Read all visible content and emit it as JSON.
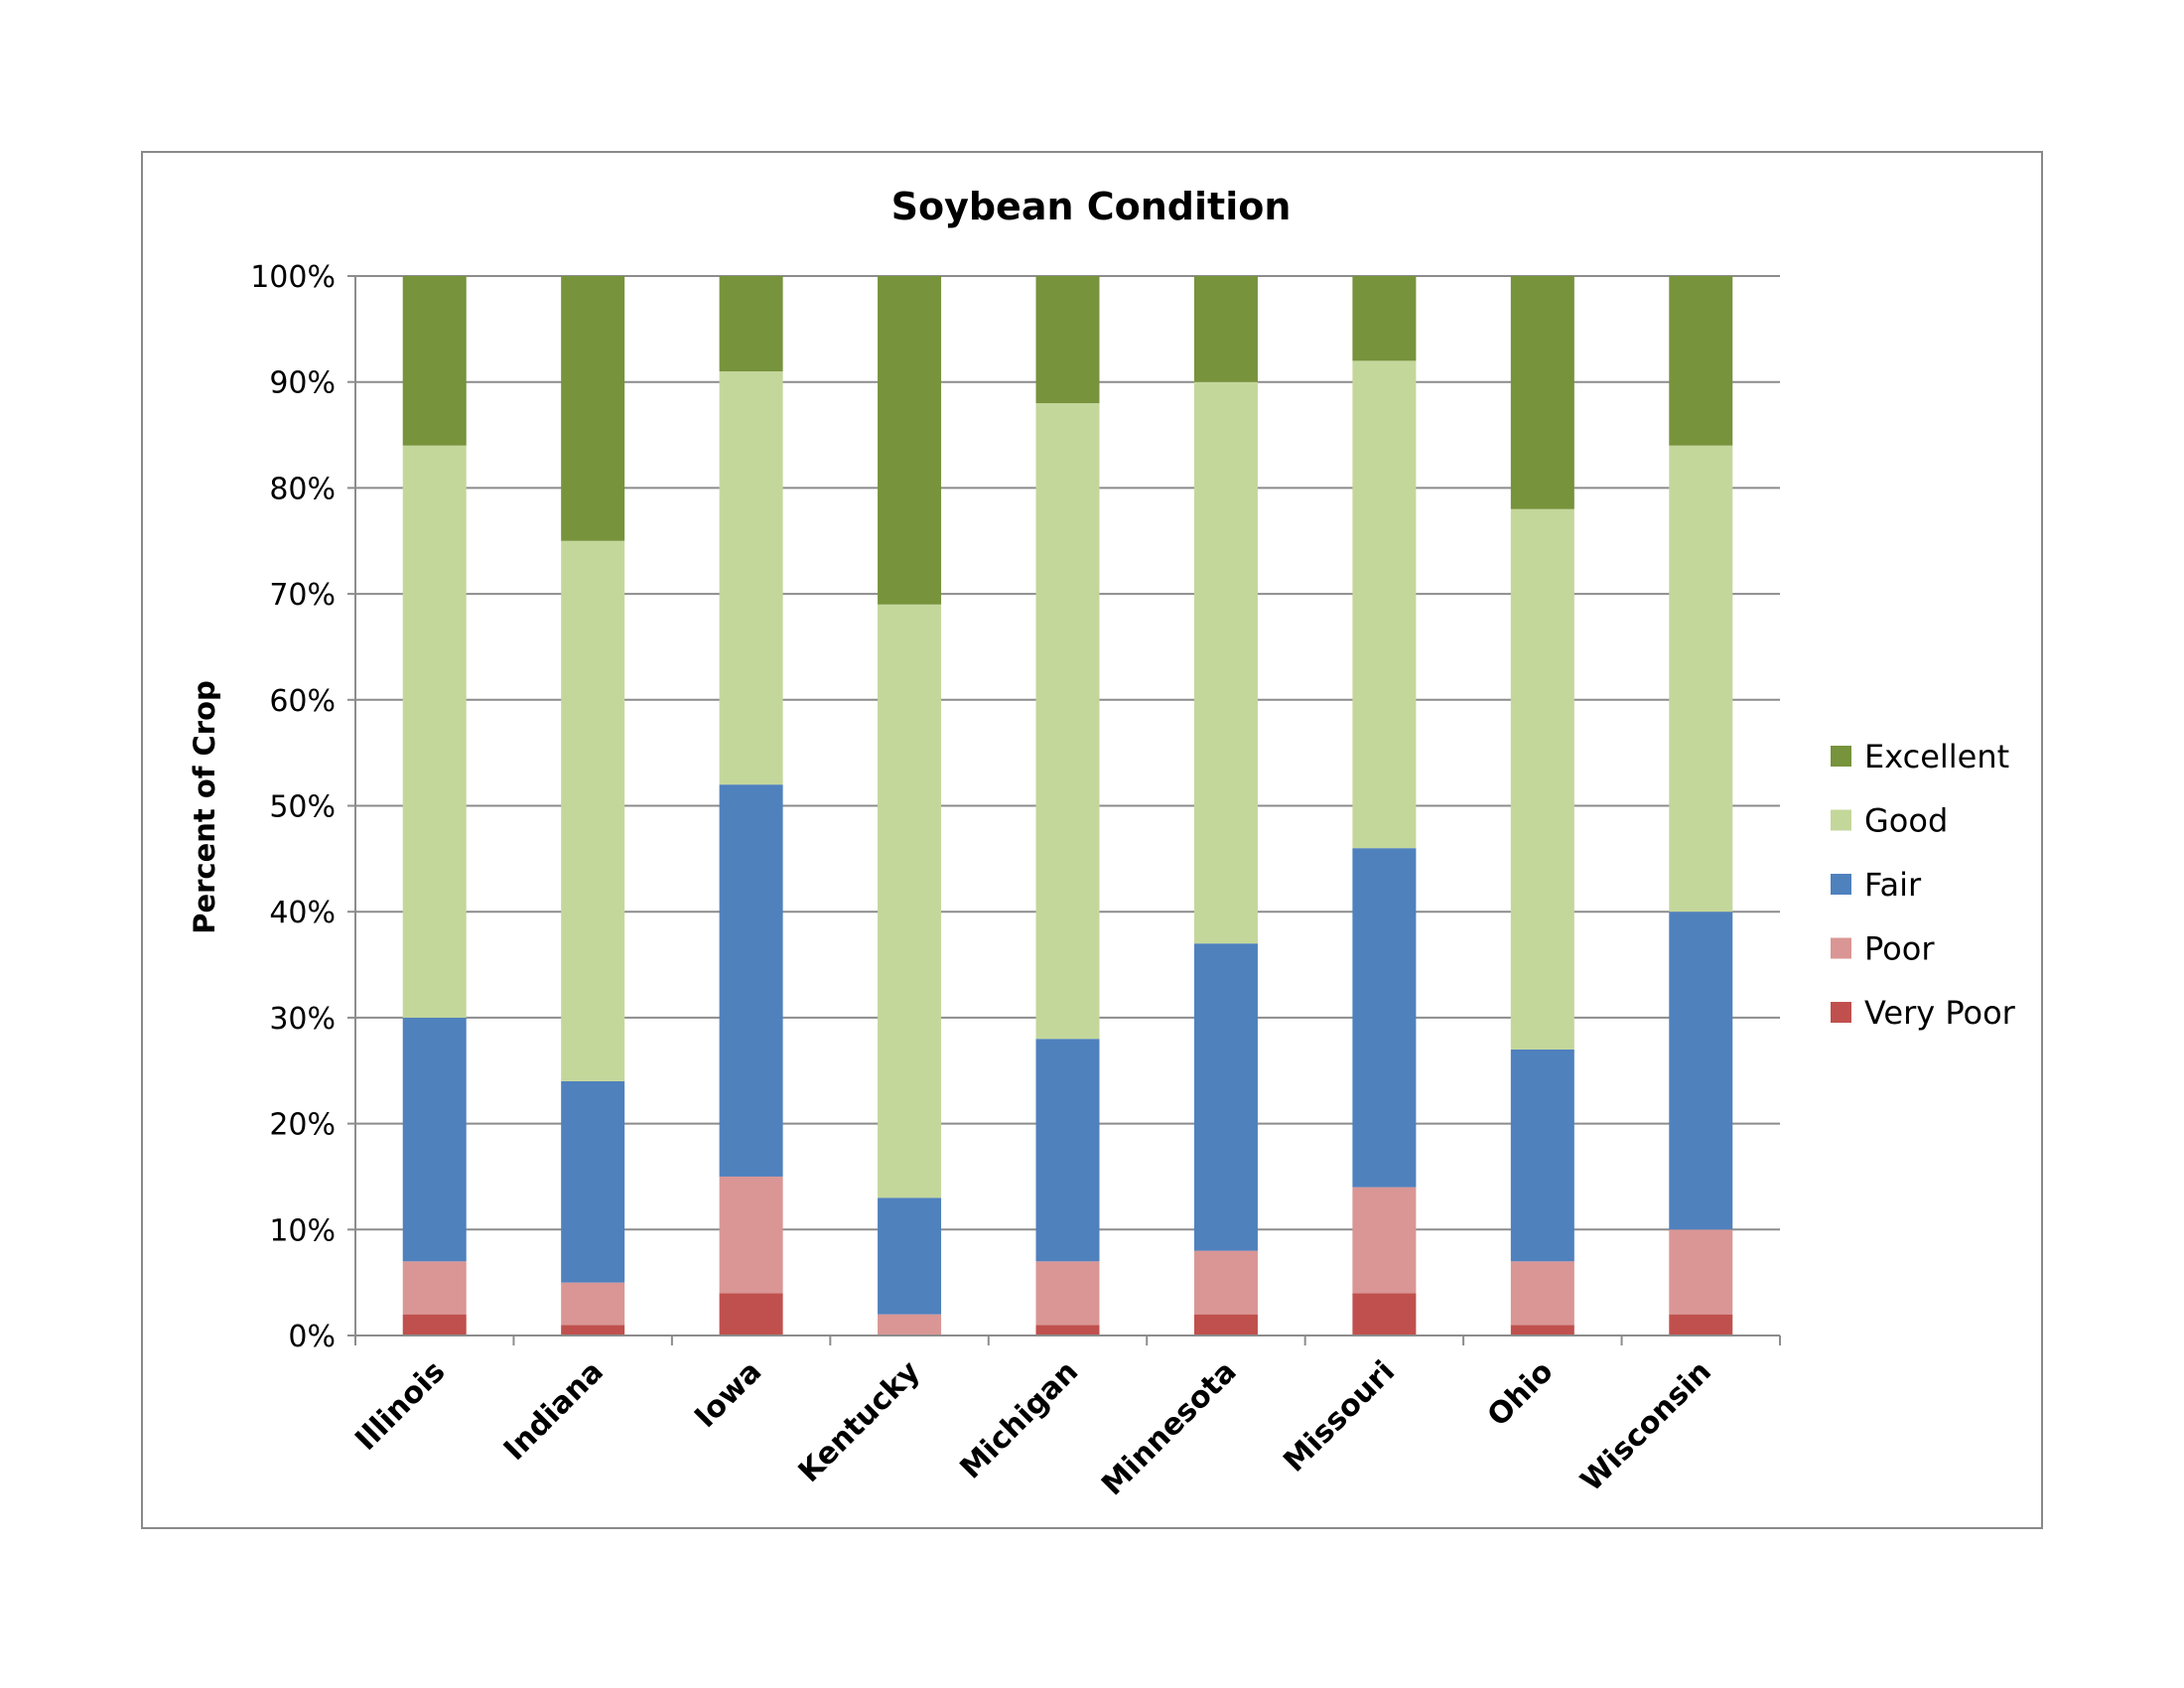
{
  "chart_data": {
    "type": "bar",
    "stacked": true,
    "title": "Soybean Condition",
    "xlabel": "",
    "ylabel": "Percent of Crop",
    "ylim": [
      0,
      100
    ],
    "ytick_labels": [
      "0%",
      "10%",
      "20%",
      "30%",
      "40%",
      "50%",
      "60%",
      "70%",
      "80%",
      "90%",
      "100%"
    ],
    "categories": [
      "Illinois",
      "Indiana",
      "Iowa",
      "Kentucky",
      "Michigan",
      "Minnesota",
      "Missouri",
      "Ohio",
      "Wisconsin"
    ],
    "grid": true,
    "legend_position": "right",
    "series": [
      {
        "name": "Very Poor",
        "color": "#C0504D",
        "values": [
          2,
          1,
          4,
          0,
          1,
          2,
          4,
          1,
          2
        ]
      },
      {
        "name": "Poor",
        "color": "#D99694",
        "values": [
          5,
          4,
          11,
          2,
          6,
          6,
          10,
          6,
          8
        ]
      },
      {
        "name": "Fair",
        "color": "#4F81BD",
        "values": [
          23,
          19,
          37,
          11,
          21,
          29,
          32,
          20,
          30
        ]
      },
      {
        "name": "Good",
        "color": "#C4D79B",
        "values": [
          54,
          51,
          39,
          56,
          60,
          53,
          46,
          51,
          44
        ]
      },
      {
        "name": "Excellent",
        "color": "#77933C",
        "values": [
          16,
          25,
          9,
          31,
          12,
          10,
          8,
          22,
          16
        ]
      }
    ],
    "legend_order": [
      "Excellent",
      "Good",
      "Fair",
      "Poor",
      "Very Poor"
    ]
  }
}
